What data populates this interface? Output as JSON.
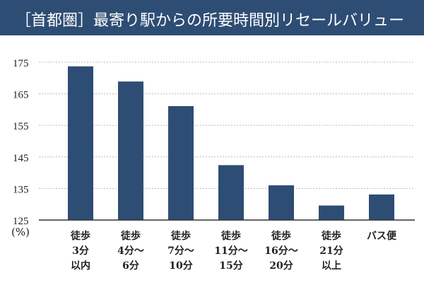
{
  "chart_data": {
    "type": "bar",
    "title": "［首都圏］最寄り駅からの所要時間別リセールバリュー",
    "ylabel": "(%)",
    "xlabel": "",
    "ylim": [
      125,
      175
    ],
    "yticks": [
      125,
      135,
      145,
      155,
      165,
      175
    ],
    "grid": true,
    "categories": [
      [
        "徒歩",
        "3分",
        "以内"
      ],
      [
        "徒歩",
        "4分～",
        "6分"
      ],
      [
        "徒歩",
        "7分～",
        "10分"
      ],
      [
        "徒歩",
        "11分～",
        "15分"
      ],
      [
        "徒歩",
        "16分～",
        "20分"
      ],
      [
        "徒歩",
        "21分",
        "以上"
      ],
      [
        "バス便"
      ]
    ],
    "values": [
      173.7,
      168.9,
      161.1,
      142.4,
      136.0,
      129.6,
      133.1
    ],
    "colors": {
      "bar": "#2e4d74",
      "title_bg": "#2e4d74",
      "grid": "#bbbbbb",
      "axis": "#333333"
    }
  }
}
